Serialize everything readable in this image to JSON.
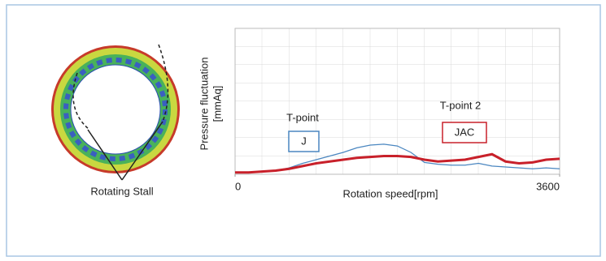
{
  "chart_data": {
    "type": "line",
    "x_label": "Rotation speed[rpm]",
    "y_label": [
      "Pressure fluctuation",
      "[mmAq]"
    ],
    "image_label": "Rotating Stall",
    "annotations": [
      "T-point",
      "T-point 2"
    ],
    "x": [
      0,
      150,
      300,
      450,
      600,
      750,
      900,
      1050,
      1200,
      1350,
      1500,
      1650,
      1800,
      1950,
      2100,
      2250,
      2400,
      2550,
      2700,
      2850,
      3000,
      3150,
      3300,
      3450,
      3600
    ],
    "xlim": [
      0,
      3600
    ],
    "xticks": [
      0,
      3600
    ],
    "ylim": [
      0,
      8
    ],
    "series": [
      {
        "name": "J",
        "color": "#4a86c0",
        "values": [
          0.1,
          0.1,
          0.15,
          0.2,
          0.35,
          0.6,
          0.8,
          1.0,
          1.2,
          1.45,
          1.6,
          1.65,
          1.55,
          1.2,
          0.65,
          0.55,
          0.5,
          0.5,
          0.6,
          0.45,
          0.4,
          0.35,
          0.3,
          0.35,
          0.3
        ]
      },
      {
        "name": "JAC",
        "color": "#c8202a",
        "values": [
          0.1,
          0.1,
          0.15,
          0.2,
          0.3,
          0.45,
          0.6,
          0.7,
          0.8,
          0.9,
          0.95,
          1.0,
          1.0,
          0.95,
          0.8,
          0.7,
          0.75,
          0.8,
          0.95,
          1.1,
          0.7,
          0.6,
          0.65,
          0.8,
          0.85
        ]
      }
    ]
  }
}
